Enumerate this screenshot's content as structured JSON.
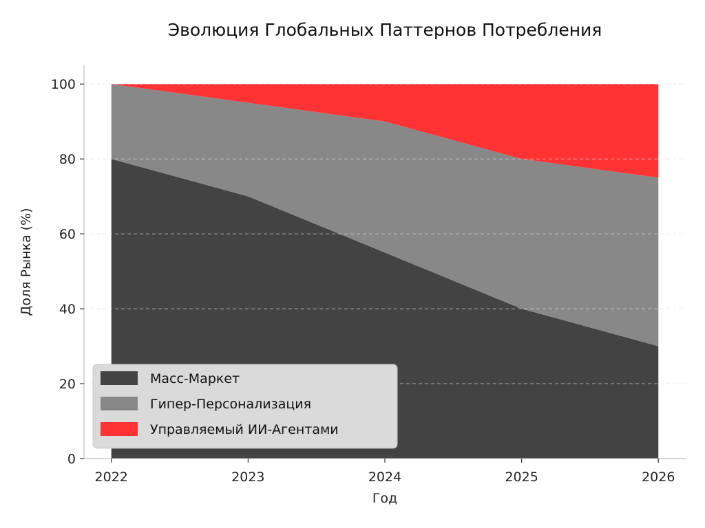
{
  "chart_data": {
    "type": "area",
    "stacked": true,
    "title": "Эволюция Глобальных Паттернов Потребления",
    "xlabel": "Год",
    "ylabel": "Доля Рынка (%)",
    "x": [
      2022,
      2023,
      2024,
      2025,
      2026
    ],
    "x_tick_labels": [
      "2022",
      "2023",
      "2024",
      "2025",
      "2026"
    ],
    "y_ticks": [
      0,
      20,
      40,
      60,
      80,
      100
    ],
    "y_tick_labels": [
      "0",
      "20",
      "40",
      "60",
      "80",
      "100"
    ],
    "ylim": [
      0,
      105
    ],
    "xlim": [
      2021.8,
      2026.2
    ],
    "grid": "horizontal-dashed",
    "legend_position": "lower-left",
    "series": [
      {
        "name": "Масс-Маркет",
        "values": [
          80,
          70,
          55,
          40,
          30
        ],
        "color": "#434343"
      },
      {
        "name": "Гипер-Персонализация",
        "values": [
          20,
          25,
          35,
          40,
          45
        ],
        "color": "#888888"
      },
      {
        "name": "Управляемый ИИ-Агентами",
        "values": [
          0,
          5,
          10,
          20,
          25
        ],
        "color": "#ff3333"
      }
    ]
  }
}
